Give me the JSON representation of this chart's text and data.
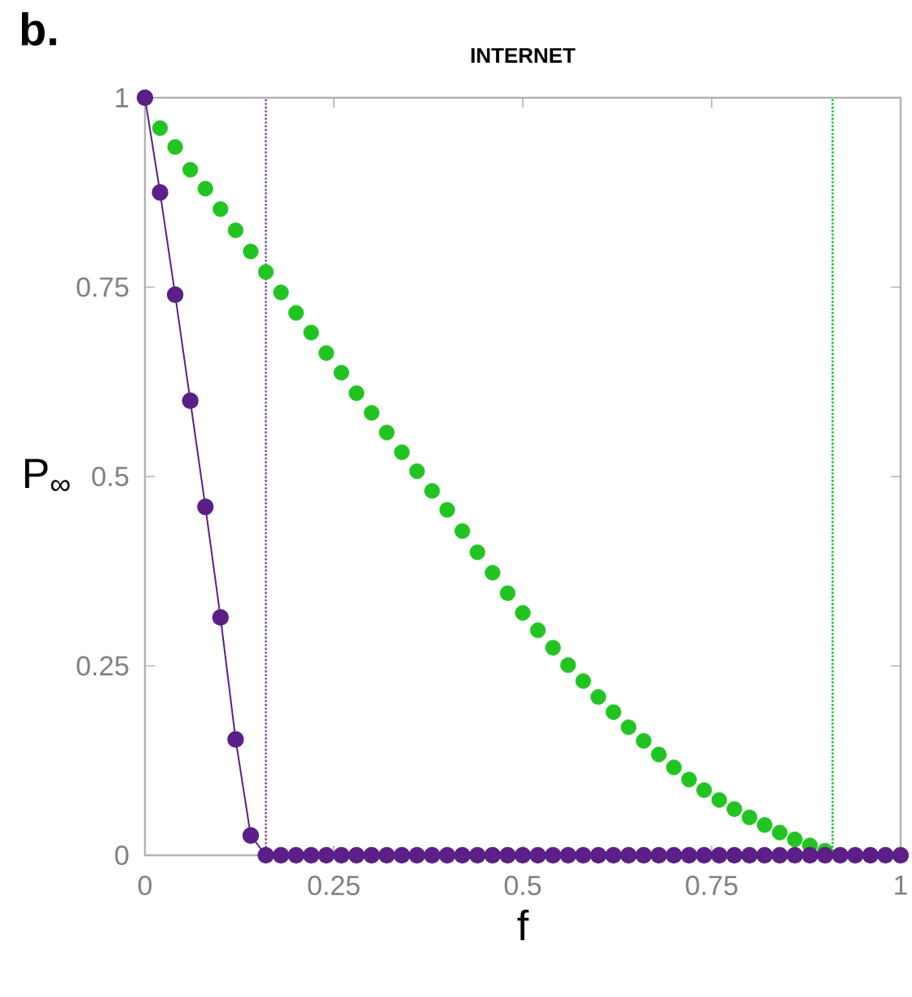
{
  "chart_data": {
    "type": "line",
    "title": "INTERNET",
    "xlabel": "f",
    "ylabel": "P$_{∞}$",
    "annotations": [
      "b."
    ],
    "xlim": [
      0,
      1
    ],
    "ylim": [
      0,
      1
    ],
    "xticks": [
      0,
      0.25,
      0.5,
      0.75,
      1
    ],
    "yticks": [
      0,
      0.25,
      0.5,
      0.75,
      1
    ],
    "marker": "circle",
    "grid": false,
    "series": [
      {
        "type": "scatter",
        "color": "#22c422",
        "x": [
          0.02,
          0.04,
          0.06,
          0.08,
          0.1,
          0.12,
          0.14,
          0.16,
          0.18,
          0.2,
          0.22,
          0.24,
          0.26,
          0.28,
          0.3,
          0.32,
          0.34,
          0.36,
          0.38,
          0.4,
          0.42,
          0.44,
          0.46,
          0.48,
          0.5,
          0.52,
          0.54,
          0.56,
          0.58,
          0.6,
          0.62,
          0.64,
          0.66,
          0.68,
          0.7,
          0.72,
          0.74,
          0.76,
          0.78,
          0.8,
          0.82,
          0.84,
          0.86,
          0.88,
          0.9
        ],
        "values": [
          0.96,
          0.935,
          0.905,
          0.88,
          0.853,
          0.825,
          0.797,
          0.77,
          0.743,
          0.716,
          0.69,
          0.663,
          0.637,
          0.61,
          0.584,
          0.558,
          0.532,
          0.507,
          0.481,
          0.456,
          0.428,
          0.4,
          0.373,
          0.346,
          0.32,
          0.297,
          0.274,
          0.251,
          0.23,
          0.209,
          0.189,
          0.169,
          0.151,
          0.133,
          0.116,
          0.1,
          0.086,
          0.073,
          0.061,
          0.05,
          0.04,
          0.03,
          0.021,
          0.013,
          0.006
        ]
      },
      {
        "color": "#5c1f88",
        "x": [
          0,
          0.02,
          0.04,
          0.06,
          0.08,
          0.1,
          0.12,
          0.14,
          0.16,
          0.18,
          0.2,
          0.22,
          0.24,
          0.26,
          0.28,
          0.3,
          0.32,
          0.34,
          0.36,
          0.38,
          0.4,
          0.42,
          0.44,
          0.46,
          0.48,
          0.5,
          0.52,
          0.54,
          0.56,
          0.58,
          0.6,
          0.62,
          0.64,
          0.66,
          0.68,
          0.7,
          0.72,
          0.74,
          0.76,
          0.78,
          0.8,
          0.82,
          0.84,
          0.86,
          0.88,
          0.9,
          0.92,
          0.94,
          0.96,
          0.98,
          1
        ],
        "values": [
          1,
          0.875,
          0.74,
          0.6,
          0.46,
          0.314,
          0.153,
          0.026,
          0,
          0,
          0,
          0,
          0,
          0,
          0,
          0,
          0,
          0,
          0,
          0,
          0,
          0,
          0,
          0,
          0,
          0,
          0,
          0,
          0,
          0,
          0,
          0,
          0,
          0,
          0,
          0,
          0,
          0,
          0,
          0,
          0,
          0,
          0,
          0,
          0,
          0,
          0,
          0,
          0,
          0,
          0
        ]
      }
    ],
    "ref_lines": [
      {
        "axis": "x",
        "value": 0.16,
        "color": "#8a4fb8",
        "line_style": "dotted"
      },
      {
        "axis": "x",
        "value": 0.91,
        "color": "#22c422",
        "line_style": "dotted"
      }
    ]
  }
}
